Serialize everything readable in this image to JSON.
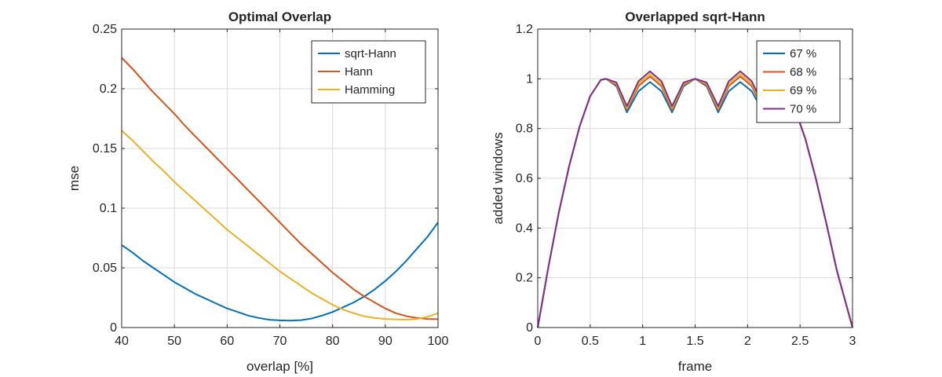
{
  "chart_data": [
    {
      "type": "line",
      "title": "Optimal Overlap",
      "xlabel": "overlap [%]",
      "ylabel": "mse",
      "xlim": [
        40,
        100
      ],
      "ylim": [
        0,
        0.25
      ],
      "xticks": [
        40,
        50,
        60,
        70,
        80,
        90,
        100
      ],
      "yticks": [
        0,
        0.05,
        0.1,
        0.15,
        0.2,
        0.25
      ],
      "xtick_labels": [
        "40",
        "50",
        "60",
        "70",
        "80",
        "90",
        "100"
      ],
      "ytick_labels": [
        "0",
        "0.05",
        "0.1",
        "0.15",
        "0.2",
        "0.25"
      ],
      "grid": true,
      "legend": "top-right",
      "series": [
        {
          "name": "sqrt-Hann",
          "color": "#0072BD",
          "x": [
            40,
            42,
            44,
            46,
            48,
            50,
            52,
            54,
            56,
            58,
            60,
            62,
            64,
            66,
            68,
            70,
            72,
            74,
            76,
            78,
            80,
            82,
            84,
            86,
            88,
            90,
            92,
            94,
            96,
            98,
            100
          ],
          "y": [
            0.069,
            0.063,
            0.056,
            0.05,
            0.044,
            0.038,
            0.033,
            0.028,
            0.024,
            0.02,
            0.016,
            0.013,
            0.01,
            0.008,
            0.0065,
            0.006,
            0.0058,
            0.0062,
            0.0075,
            0.01,
            0.013,
            0.017,
            0.021,
            0.026,
            0.032,
            0.039,
            0.047,
            0.056,
            0.066,
            0.076,
            0.088
          ]
        },
        {
          "name": "Hann",
          "color": "#D95319",
          "x": [
            40,
            42,
            44,
            46,
            48,
            50,
            52,
            54,
            56,
            58,
            60,
            62,
            64,
            66,
            68,
            70,
            72,
            74,
            76,
            78,
            80,
            82,
            84,
            86,
            88,
            90,
            92,
            94,
            96,
            98,
            100
          ],
          "y": [
            0.226,
            0.217,
            0.207,
            0.197,
            0.188,
            0.179,
            0.169,
            0.16,
            0.151,
            0.142,
            0.133,
            0.124,
            0.115,
            0.106,
            0.097,
            0.088,
            0.079,
            0.07,
            0.062,
            0.054,
            0.046,
            0.039,
            0.032,
            0.026,
            0.021,
            0.016,
            0.012,
            0.0095,
            0.008,
            0.0072,
            0.007
          ]
        },
        {
          "name": "Hamming",
          "color": "#EDB120",
          "x": [
            40,
            42,
            44,
            46,
            48,
            50,
            52,
            54,
            56,
            58,
            60,
            62,
            64,
            66,
            68,
            70,
            72,
            74,
            76,
            78,
            80,
            82,
            84,
            86,
            88,
            90,
            92,
            94,
            96,
            98,
            100
          ],
          "y": [
            0.165,
            0.157,
            0.148,
            0.139,
            0.131,
            0.122,
            0.114,
            0.106,
            0.098,
            0.09,
            0.082,
            0.075,
            0.068,
            0.061,
            0.054,
            0.047,
            0.041,
            0.035,
            0.029,
            0.024,
            0.019,
            0.015,
            0.012,
            0.0095,
            0.008,
            0.0072,
            0.0068,
            0.0066,
            0.0072,
            0.009,
            0.012
          ]
        }
      ]
    },
    {
      "type": "line",
      "title": "Overlapped sqrt-Hann",
      "xlabel": "frame",
      "ylabel": "added windows",
      "xlim": [
        0,
        3
      ],
      "ylim": [
        0,
        1.2
      ],
      "xticks": [
        0,
        0.5,
        1,
        1.5,
        2,
        2.5,
        3
      ],
      "yticks": [
        0,
        0.2,
        0.4,
        0.6,
        0.8,
        1,
        1.2
      ],
      "xtick_labels": [
        "0",
        "0.5",
        "1",
        "1.5",
        "2",
        "2.5",
        "3"
      ],
      "ytick_labels": [
        "0",
        "0.2",
        "0.4",
        "0.6",
        "0.8",
        "1",
        "1.2"
      ],
      "grid": true,
      "legend": "top-right",
      "series": [
        {
          "name": "67 %",
          "color": "#0072BD",
          "x": [
            0,
            0.1,
            0.2,
            0.3,
            0.4,
            0.5,
            0.6,
            0.65,
            0.75,
            0.85,
            0.96,
            1.07,
            1.18,
            1.28,
            1.39,
            1.5,
            1.61,
            1.72,
            1.82,
            1.93,
            2.04,
            2.15,
            2.25,
            2.35,
            2.45,
            2.55,
            2.65,
            2.75,
            2.85,
            3
          ],
          "y": [
            0,
            0.24,
            0.46,
            0.65,
            0.81,
            0.93,
            0.995,
            1.0,
            0.97,
            0.865,
            0.95,
            0.987,
            0.95,
            0.865,
            0.97,
            1.0,
            0.97,
            0.865,
            0.95,
            0.987,
            0.95,
            0.865,
            0.99,
            0.96,
            0.88,
            0.76,
            0.6,
            0.42,
            0.23,
            0
          ]
        },
        {
          "name": "68 %",
          "color": "#D95319",
          "x": [
            0,
            0.1,
            0.2,
            0.3,
            0.4,
            0.5,
            0.6,
            0.65,
            0.75,
            0.85,
            0.96,
            1.07,
            1.18,
            1.28,
            1.39,
            1.5,
            1.61,
            1.72,
            1.82,
            1.93,
            2.04,
            2.15,
            2.25,
            2.35,
            2.45,
            2.55,
            2.65,
            2.75,
            2.85,
            3
          ],
          "y": [
            0,
            0.24,
            0.46,
            0.65,
            0.81,
            0.93,
            0.995,
            1.0,
            0.975,
            0.875,
            0.97,
            1.01,
            0.97,
            0.875,
            0.975,
            1.0,
            0.975,
            0.875,
            0.97,
            1.01,
            0.97,
            0.875,
            0.99,
            0.96,
            0.88,
            0.76,
            0.6,
            0.42,
            0.23,
            0
          ]
        },
        {
          "name": "69 %",
          "color": "#EDB120",
          "x": [
            0,
            0.1,
            0.2,
            0.3,
            0.4,
            0.5,
            0.6,
            0.65,
            0.75,
            0.85,
            0.96,
            1.07,
            1.18,
            1.28,
            1.39,
            1.5,
            1.61,
            1.72,
            1.82,
            1.93,
            2.04,
            2.15,
            2.25,
            2.35,
            2.45,
            2.55,
            2.65,
            2.75,
            2.85,
            3
          ],
          "y": [
            0,
            0.24,
            0.46,
            0.65,
            0.81,
            0.93,
            0.995,
            1.0,
            0.98,
            0.882,
            0.98,
            1.02,
            0.98,
            0.882,
            0.98,
            1.0,
            0.98,
            0.882,
            0.98,
            1.02,
            0.98,
            0.882,
            0.99,
            0.96,
            0.88,
            0.76,
            0.6,
            0.42,
            0.23,
            0
          ]
        },
        {
          "name": "70 %",
          "color": "#7E2F8E",
          "x": [
            0,
            0.1,
            0.2,
            0.3,
            0.4,
            0.5,
            0.6,
            0.65,
            0.75,
            0.85,
            0.96,
            1.07,
            1.18,
            1.28,
            1.39,
            1.5,
            1.61,
            1.72,
            1.82,
            1.93,
            2.04,
            2.15,
            2.25,
            2.35,
            2.45,
            2.55,
            2.65,
            2.75,
            2.85,
            3
          ],
          "y": [
            0,
            0.24,
            0.46,
            0.65,
            0.81,
            0.93,
            0.995,
            1.0,
            0.985,
            0.89,
            0.99,
            1.03,
            0.99,
            0.89,
            0.985,
            1.0,
            0.985,
            0.89,
            0.99,
            1.03,
            0.99,
            0.89,
            0.99,
            0.96,
            0.88,
            0.76,
            0.6,
            0.42,
            0.23,
            0
          ]
        }
      ]
    }
  ]
}
